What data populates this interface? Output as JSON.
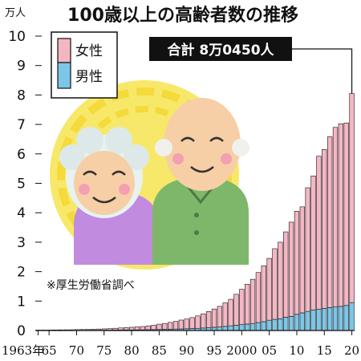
{
  "chart_data": {
    "type": "bar",
    "stacked": true,
    "title": "100歳以上の高齢者数の推移",
    "unit_label": "万人",
    "ylim": [
      0,
      10
    ],
    "yticks": [
      0,
      1,
      2,
      3,
      4,
      5,
      6,
      7,
      8,
      9,
      10
    ],
    "x": [
      1963,
      1964,
      1965,
      1966,
      1967,
      1968,
      1969,
      1970,
      1971,
      1972,
      1973,
      1974,
      1975,
      1976,
      1977,
      1978,
      1979,
      1980,
      1981,
      1982,
      1983,
      1984,
      1985,
      1986,
      1987,
      1988,
      1989,
      1990,
      1991,
      1992,
      1993,
      1994,
      1995,
      1996,
      1997,
      1998,
      1999,
      2000,
      2001,
      2002,
      2003,
      2004,
      2005,
      2006,
      2007,
      2008,
      2009,
      2010,
      2011,
      2012,
      2013,
      2014,
      2015,
      2016,
      2017,
      2018,
      2019,
      2020
    ],
    "x_tick_labels": [
      {
        "year": 1963,
        "label": "1963年"
      },
      {
        "year": 1965,
        "label": "65"
      },
      {
        "year": 1970,
        "label": "70"
      },
      {
        "year": 1975,
        "label": "75"
      },
      {
        "year": 1980,
        "label": "80"
      },
      {
        "year": 1985,
        "label": "85"
      },
      {
        "year": 1990,
        "label": "90"
      },
      {
        "year": 1995,
        "label": "95"
      },
      {
        "year": 2000,
        "label": "2000"
      },
      {
        "year": 2005,
        "label": "05"
      },
      {
        "year": 2010,
        "label": "10"
      },
      {
        "year": 2015,
        "label": "15"
      },
      {
        "year": 2020,
        "label": "20"
      }
    ],
    "series": [
      {
        "name": "男性",
        "color": "#7cc6e8",
        "values": [
          0.003,
          0.003,
          0.003,
          0.004,
          0.005,
          0.005,
          0.006,
          0.006,
          0.007,
          0.008,
          0.009,
          0.01,
          0.012,
          0.014,
          0.016,
          0.018,
          0.02,
          0.02,
          0.022,
          0.025,
          0.028,
          0.03,
          0.035,
          0.04,
          0.045,
          0.05,
          0.055,
          0.06,
          0.068,
          0.075,
          0.085,
          0.095,
          0.11,
          0.12,
          0.14,
          0.16,
          0.18,
          0.2,
          0.22,
          0.24,
          0.27,
          0.3,
          0.35,
          0.38,
          0.4,
          0.45,
          0.48,
          0.55,
          0.6,
          0.65,
          0.7,
          0.72,
          0.75,
          0.78,
          0.8,
          0.82,
          0.85,
          0.95
        ]
      },
      {
        "name": "女性",
        "color": "#f5b6c4",
        "values": [
          0.012,
          0.013,
          0.014,
          0.016,
          0.017,
          0.019,
          0.02,
          0.025,
          0.028,
          0.03,
          0.035,
          0.04,
          0.045,
          0.052,
          0.06,
          0.07,
          0.08,
          0.09,
          0.1,
          0.11,
          0.13,
          0.15,
          0.18,
          0.2,
          0.23,
          0.26,
          0.3,
          0.33,
          0.37,
          0.42,
          0.48,
          0.55,
          0.62,
          0.7,
          0.8,
          0.9,
          1.05,
          1.2,
          1.35,
          1.5,
          1.7,
          1.9,
          2.1,
          2.4,
          2.6,
          2.9,
          3.2,
          3.5,
          3.6,
          4.2,
          4.55,
          5.2,
          5.4,
          5.8,
          6.1,
          6.2,
          6.2,
          7.1
        ]
      }
    ],
    "total_label": "合計 8万0450人",
    "source_note": "※厚生労働省調べ"
  },
  "legend": {
    "female_label": "女性",
    "male_label": "男性"
  },
  "colors": {
    "female": "#f5b6c4",
    "male": "#7cc6e8",
    "illustration_sun": "#f7e65a",
    "woman_shirt": "#c18be0",
    "man_shirt": "#7db86a",
    "skin": "#f6cfa6"
  }
}
